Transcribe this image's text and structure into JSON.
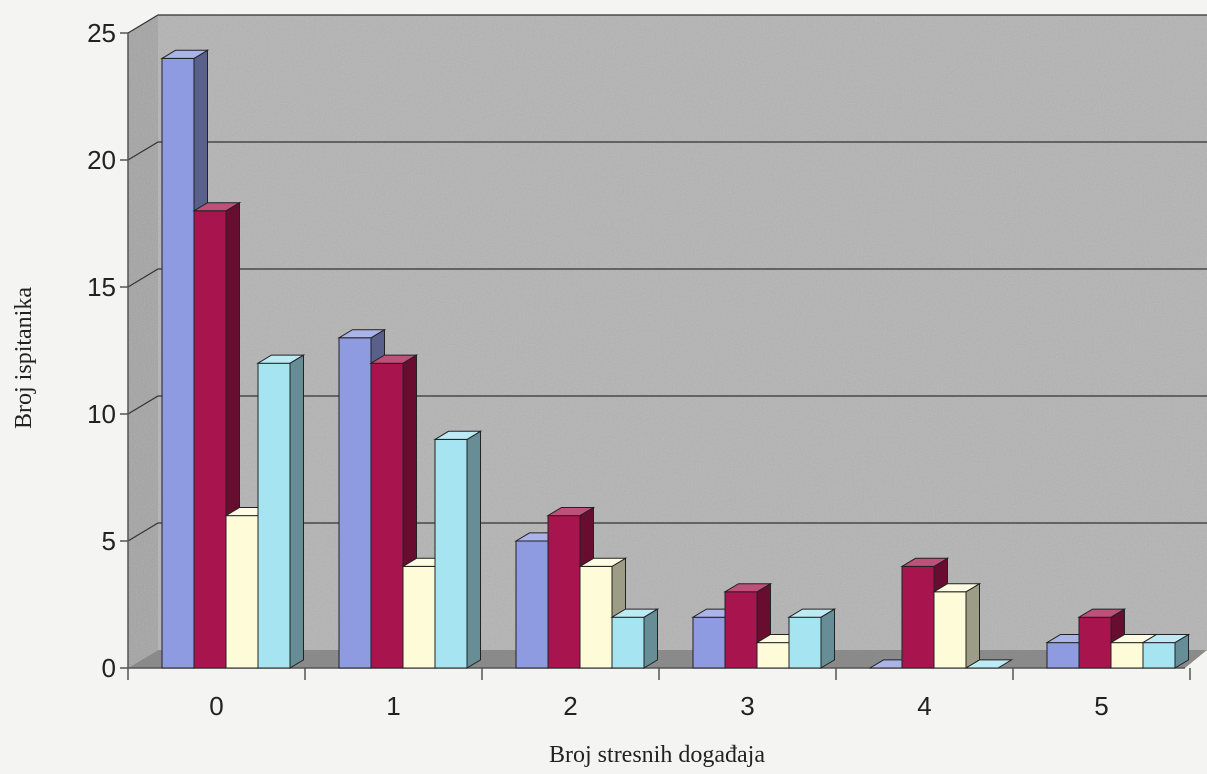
{
  "chart_data": {
    "type": "bar",
    "style": "3d-clustered-column",
    "title": "",
    "xlabel": "Broj stresnih događaja",
    "ylabel": "Broj ispitanika",
    "categories": [
      "0",
      "1",
      "2",
      "3",
      "4",
      "5"
    ],
    "ylim": [
      0,
      25
    ],
    "yticks": [
      "0",
      "5",
      "10",
      "15",
      "20",
      "25"
    ],
    "grid": true,
    "legend": "none",
    "series": [
      {
        "values": [
          24,
          13,
          5,
          2,
          0,
          1
        ],
        "color": "#8e9be0"
      },
      {
        "values": [
          18,
          12,
          6,
          3,
          4,
          2
        ],
        "color": "#a8154e"
      },
      {
        "values": [
          6,
          4,
          4,
          1,
          3,
          1
        ],
        "color": "#fdfbd8"
      },
      {
        "values": [
          12,
          9,
          2,
          2,
          0,
          1
        ],
        "color": "#a6e4f2"
      }
    ],
    "colors": {
      "wall": "#b4b4b4",
      "floor": "#8a8a8a",
      "gridline": "#333333",
      "axis": "#555555"
    }
  }
}
